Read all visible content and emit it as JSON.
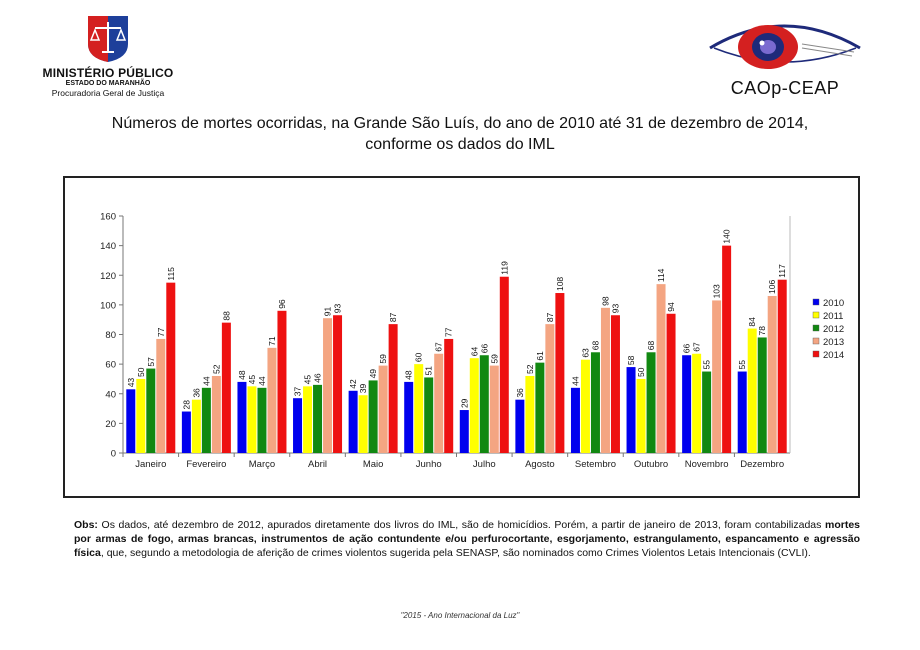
{
  "header": {
    "left_logo": {
      "line1": "MINISTÉRIO PÚBLICO",
      "line2": "ESTADO DO MARANHÃO",
      "line3": "Procuradoria Geral de Justiça",
      "icon": "scales-of-justice-icon"
    },
    "right_logo": {
      "name": "CAOp-CEAP",
      "icon": "eye-emblem-icon"
    }
  },
  "title": {
    "line1": "Números de mortes ocorridas, na Grande São Luís, do ano de 2010 até 31 de dezembro de 2014,",
    "line2": "conforme os dados do IML"
  },
  "chart_data": {
    "type": "bar",
    "categories": [
      "Janeiro",
      "Fevereiro",
      "Março",
      "Abril",
      "Maio",
      "Junho",
      "Julho",
      "Agosto",
      "Setembro",
      "Outubro",
      "Novembro",
      "Dezembro"
    ],
    "series": [
      {
        "name": "2010",
        "color": "#0000ee",
        "values": [
          43,
          28,
          48,
          37,
          42,
          48,
          29,
          36,
          44,
          58,
          66,
          55
        ]
      },
      {
        "name": "2011",
        "color": "#ffff00",
        "values": [
          50,
          36,
          45,
          45,
          39,
          60,
          64,
          52,
          63,
          50,
          67,
          84
        ]
      },
      {
        "name": "2012",
        "color": "#118811",
        "values": [
          57,
          44,
          44,
          46,
          49,
          51,
          66,
          61,
          68,
          68,
          55,
          78
        ]
      },
      {
        "name": "2013",
        "color": "#f4a582",
        "values": [
          77,
          52,
          71,
          91,
          59,
          67,
          59,
          87,
          98,
          114,
          103,
          106
        ]
      },
      {
        "name": "2014",
        "color": "#ee1111",
        "values": [
          115,
          88,
          96,
          93,
          87,
          77,
          119,
          108,
          93,
          94,
          140,
          117
        ]
      }
    ],
    "ylim": [
      0,
      160
    ],
    "yticks": [
      0,
      20,
      40,
      60,
      80,
      100,
      120,
      140,
      160
    ],
    "grid": false,
    "legend": "right",
    "data_labels": true
  },
  "notes": {
    "label": "Obs:",
    "text1": " Os dados, até dezembro de 2012, apurados diretamente dos livros do IML, são de homicídios. Porém, a partir de janeiro de 2013, foram contabilizadas ",
    "bold": "mortes por armas de fogo, armas brancas, instrumentos de ação contundente e/ou perfurocortante, esgorjamento, estrangulamento, espancamento e agressão física",
    "text2": ", que, segundo a metodologia de aferição de crimes violentos sugerida pela SENASP, são nominados como Crimes Violentos Letais Intencionais (CVLI)."
  },
  "footer": "\"2015 - Ano Internacional da Luz\""
}
